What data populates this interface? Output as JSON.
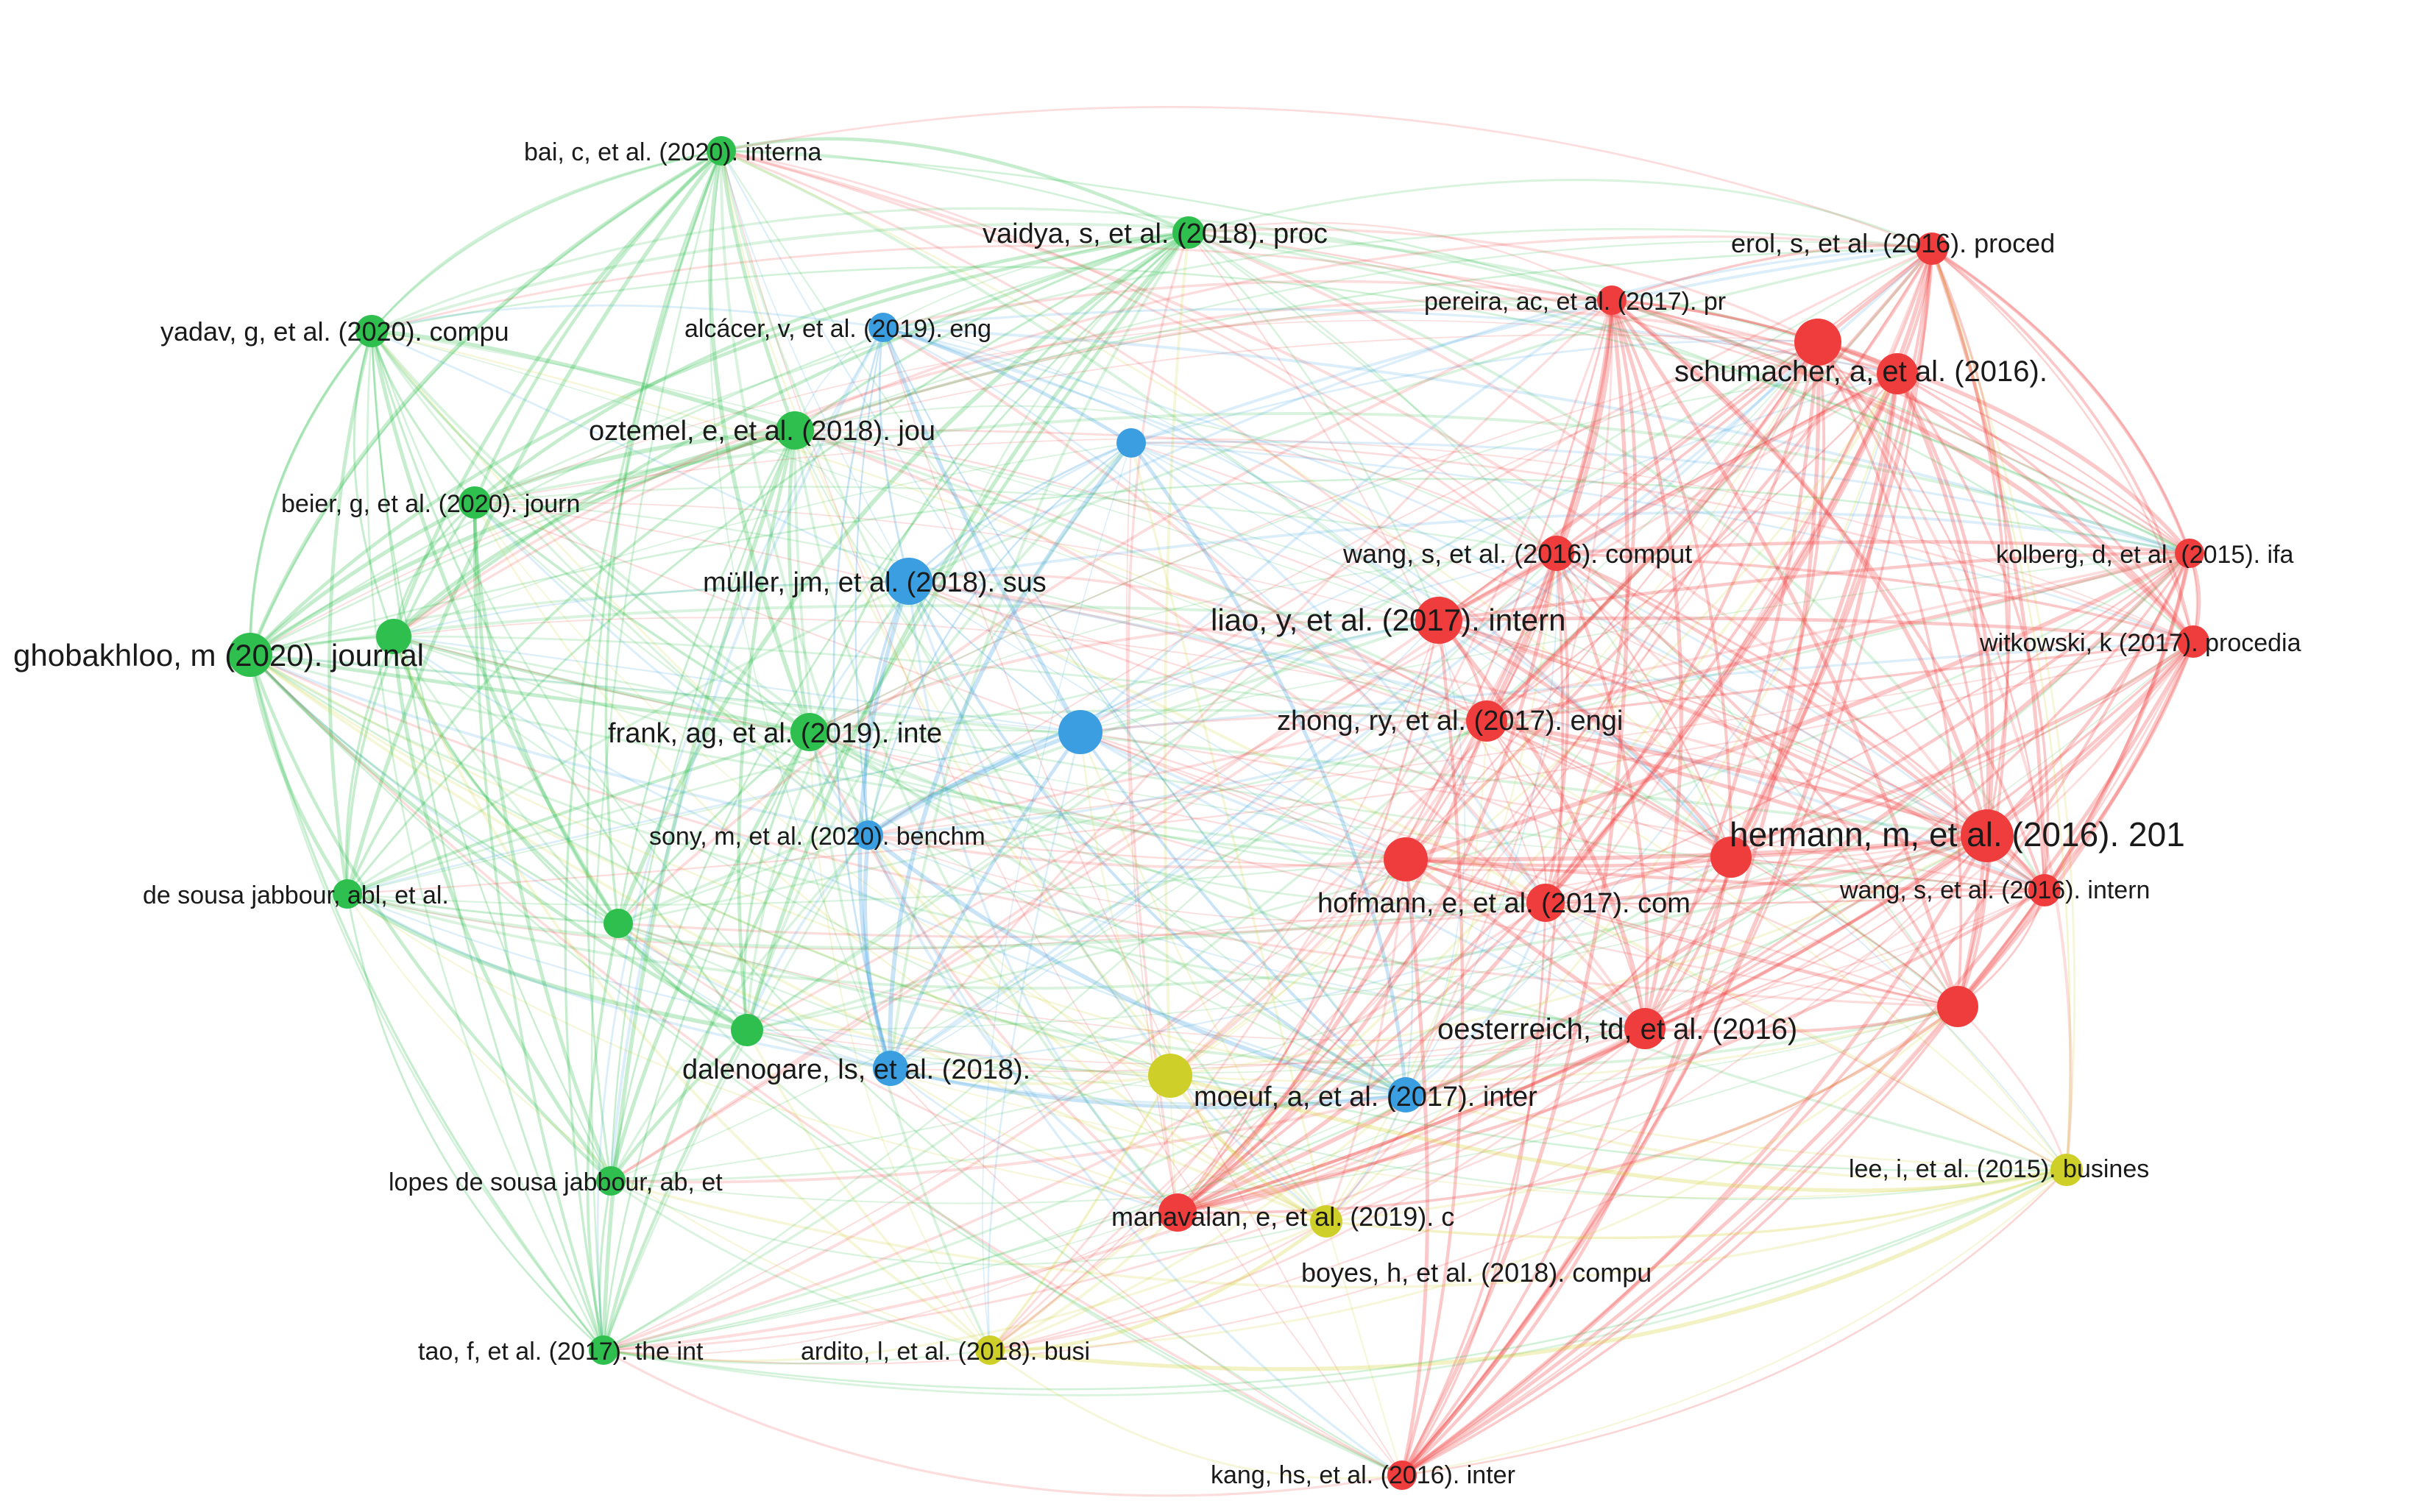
{
  "clusters": {
    "green": "#2fbf4f",
    "blue": "#3a9ee0",
    "red": "#ef3d3d",
    "yellow": "#cfcf2a"
  },
  "nodes": [
    {
      "id": "bai",
      "label": "bai, c, et al. (2020). interna",
      "cluster": "green"
    },
    {
      "id": "vaidya",
      "label": "vaidya, s, et al. (2018). proc",
      "cluster": "green"
    },
    {
      "id": "yadav",
      "label": "yadav, g, et al. (2020). compu",
      "cluster": "green"
    },
    {
      "id": "oztemel",
      "label": "oztemel, e, et al. (2018). jou",
      "cluster": "green"
    },
    {
      "id": "beier",
      "label": "beier, g, et al. (2020). journ",
      "cluster": "green"
    },
    {
      "id": "ghobakhloo",
      "label": "ghobakhloo, m (2020). journal",
      "cluster": "green"
    },
    {
      "id": "greenA",
      "label": "",
      "cluster": "green"
    },
    {
      "id": "frank",
      "label": "frank, ag, et al. (2019). inte",
      "cluster": "green"
    },
    {
      "id": "desousa",
      "label": "de sousa jabbour, abl, et al.",
      "cluster": "green"
    },
    {
      "id": "greenB",
      "label": "",
      "cluster": "green"
    },
    {
      "id": "greenC",
      "label": "",
      "cluster": "green"
    },
    {
      "id": "lopes",
      "label": "lopes de sousa jabbour, ab, et",
      "cluster": "green"
    },
    {
      "id": "tao",
      "label": "tao, f, et al. (2017). the int",
      "cluster": "green"
    },
    {
      "id": "alcacer",
      "label": "alcácer, v, et al. (2019). eng",
      "cluster": "blue"
    },
    {
      "id": "blueA",
      "label": "",
      "cluster": "blue"
    },
    {
      "id": "muller",
      "label": "müller, jm, et al. (2018). sus",
      "cluster": "blue"
    },
    {
      "id": "blueB",
      "label": "",
      "cluster": "blue"
    },
    {
      "id": "sony",
      "label": "sony, m, et al. (2020). benchm",
      "cluster": "blue"
    },
    {
      "id": "dalenogare",
      "label": "dalenogare, ls, et al. (2018).",
      "cluster": "blue"
    },
    {
      "id": "moeuf",
      "label": "moeuf, a, et al. (2017). inter",
      "cluster": "blue"
    },
    {
      "id": "erol",
      "label": "erol, s, et al. (2016). proced",
      "cluster": "red"
    },
    {
      "id": "pereira",
      "label": "pereira, ac, et al. (2017). pr",
      "cluster": "red"
    },
    {
      "id": "redA",
      "label": "",
      "cluster": "red"
    },
    {
      "id": "schumacher",
      "label": "schumacher, a, et al. (2016).",
      "cluster": "red"
    },
    {
      "id": "wangc",
      "label": "wang, s, et al. (2016). comput",
      "cluster": "red"
    },
    {
      "id": "kolberg",
      "label": "kolberg, d, et al. (2015). ifa",
      "cluster": "red"
    },
    {
      "id": "liao",
      "label": "liao, y, et al. (2017). intern",
      "cluster": "red"
    },
    {
      "id": "witkowski",
      "label": "witkowski, k (2017). procedia",
      "cluster": "red"
    },
    {
      "id": "zhong",
      "label": "zhong, ry, et al. (2017). engi",
      "cluster": "red"
    },
    {
      "id": "redB",
      "label": "",
      "cluster": "red"
    },
    {
      "id": "redC",
      "label": "",
      "cluster": "red"
    },
    {
      "id": "hermann",
      "label": "hermann, m, et al. (2016). 201",
      "cluster": "red"
    },
    {
      "id": "hofmann",
      "label": "hofmann, e, et al. (2017). com",
      "cluster": "red"
    },
    {
      "id": "wangi",
      "label": "wang, s, et al. (2016). intern",
      "cluster": "red"
    },
    {
      "id": "redD",
      "label": "",
      "cluster": "red"
    },
    {
      "id": "oesterreich",
      "label": "oesterreich, td, et al. (2016)",
      "cluster": "red"
    },
    {
      "id": "manavalan",
      "label": "manavalan, e, et al. (2019). c",
      "cluster": "red"
    },
    {
      "id": "kang",
      "label": "kang, hs, et al. (2016). inter",
      "cluster": "red"
    },
    {
      "id": "yelA",
      "label": "",
      "cluster": "yellow"
    },
    {
      "id": "lee",
      "label": "lee, i, et al. (2015). busines",
      "cluster": "yellow"
    },
    {
      "id": "boyes",
      "label": "boyes, h, et al. (2018). compu",
      "cluster": "yellow"
    },
    {
      "id": "ardito",
      "label": "ardito, l, et al. (2018). busi",
      "cluster": "yellow"
    }
  ]
}
